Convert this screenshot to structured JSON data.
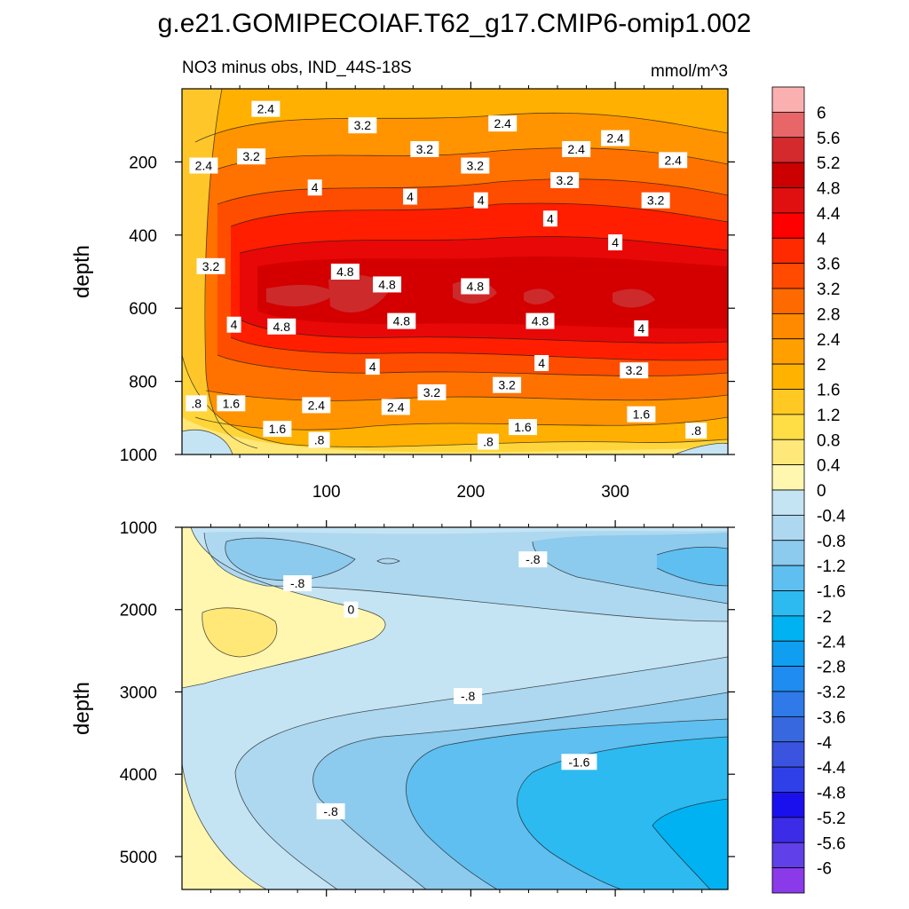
{
  "chart_data": {
    "type": "contour",
    "title": "g.e21.GOMIPECOIAF.T62_g17.CMIP6-omip1.002",
    "subtitle_left": "NO3 minus obs, IND_44S-18S",
    "subtitle_right": "mmol/m^3",
    "x_range": [
      0,
      378
    ],
    "x_ticks": [
      100,
      200,
      300
    ],
    "x_tick_labels": [
      "100",
      "200",
      "300"
    ],
    "panels": [
      {
        "name": "upper",
        "ylabel": "depth",
        "y_range": [
          1000,
          0
        ],
        "y_ticks": [
          200,
          400,
          600,
          800,
          1000
        ],
        "y_tick_labels": [
          "200",
          "400",
          "600",
          "800",
          "1000"
        ],
        "line_labels": [
          {
            "text": "2.4",
            "x": 58,
            "y": 55
          },
          {
            "text": "3.2",
            "x": 125,
            "y": 100
          },
          {
            "text": "2.4",
            "x": 222,
            "y": 95
          },
          {
            "text": "2.4",
            "x": 300,
            "y": 135
          },
          {
            "text": "2.4",
            "x": 273,
            "y": 165
          },
          {
            "text": "3.2",
            "x": 168,
            "y": 165
          },
          {
            "text": "3.2",
            "x": 48,
            "y": 185
          },
          {
            "text": "2.4",
            "x": 15,
            "y": 210
          },
          {
            "text": "3.2",
            "x": 203,
            "y": 210
          },
          {
            "text": "2.4",
            "x": 340,
            "y": 195
          },
          {
            "text": "3.2",
            "x": 265,
            "y": 250
          },
          {
            "text": "4",
            "x": 92,
            "y": 270
          },
          {
            "text": "4",
            "x": 158,
            "y": 295
          },
          {
            "text": "4",
            "x": 207,
            "y": 305
          },
          {
            "text": "3.2",
            "x": 328,
            "y": 305
          },
          {
            "text": "4",
            "x": 255,
            "y": 355
          },
          {
            "text": "4",
            "x": 300,
            "y": 420
          },
          {
            "text": "3.2",
            "x": 20,
            "y": 485
          },
          {
            "text": "4.8",
            "x": 113,
            "y": 500
          },
          {
            "text": "4.8",
            "x": 142,
            "y": 535
          },
          {
            "text": "4.8",
            "x": 203,
            "y": 540
          },
          {
            "text": "4.8",
            "x": 152,
            "y": 635
          },
          {
            "text": "4.8",
            "x": 248,
            "y": 635
          },
          {
            "text": "4",
            "x": 36,
            "y": 645
          },
          {
            "text": "4.8",
            "x": 69,
            "y": 650
          },
          {
            "text": "4",
            "x": 318,
            "y": 655
          },
          {
            "text": "4",
            "x": 132,
            "y": 760
          },
          {
            "text": "4",
            "x": 249,
            "y": 750
          },
          {
            "text": "3.2",
            "x": 313,
            "y": 770
          },
          {
            "text": "3.2",
            "x": 225,
            "y": 810
          },
          {
            "text": "3.2",
            "x": 173,
            "y": 830
          },
          {
            "text": ".8",
            "x": 10,
            "y": 860
          },
          {
            "text": "1.6",
            "x": 34,
            "y": 860
          },
          {
            "text": "2.4",
            "x": 93,
            "y": 865
          },
          {
            "text": "2.4",
            "x": 148,
            "y": 870
          },
          {
            "text": "1.6",
            "x": 318,
            "y": 890
          },
          {
            "text": "1.6",
            "x": 66,
            "y": 930
          },
          {
            "text": "1.6",
            "x": 236,
            "y": 925
          },
          {
            "text": ".8",
            "x": 356,
            "y": 935
          },
          {
            "text": ".8",
            "x": 95,
            "y": 960
          },
          {
            "text": ".8",
            "x": 212,
            "y": 965
          }
        ]
      },
      {
        "name": "lower",
        "ylabel": "depth",
        "y_range": [
          5400,
          1000
        ],
        "y_ticks": [
          1000,
          2000,
          3000,
          4000,
          5000
        ],
        "y_tick_labels": [
          "1000",
          "2000",
          "3000",
          "4000",
          "5000"
        ],
        "line_labels": [
          {
            "text": "-.8",
            "x": 80,
            "y": 1680
          },
          {
            "text": "-.8",
            "x": 243,
            "y": 1390
          },
          {
            "text": "0",
            "x": 117,
            "y": 2000
          },
          {
            "text": "-.8",
            "x": 198,
            "y": 3050
          },
          {
            "text": "-1.6",
            "x": 275,
            "y": 3850
          },
          {
            "text": "-.8",
            "x": 103,
            "y": 4450
          }
        ]
      }
    ],
    "colorbar": {
      "levels": [
        "6",
        "5.6",
        "5.2",
        "4.8",
        "4.4",
        "4",
        "3.6",
        "3.2",
        "2.8",
        "2.4",
        "2",
        "1.6",
        "1.2",
        "0.8",
        "0.4",
        "0",
        "-0.4",
        "-0.8",
        "-1.2",
        "-1.6",
        "-2",
        "-2.4",
        "-2.8",
        "-3.2",
        "-3.6",
        "-4",
        "-4.4",
        "-4.8",
        "-5.2",
        "-5.6",
        "-6"
      ],
      "colors": [
        "#fbb0b0",
        "#e86668",
        "#d42a2e",
        "#cc0000",
        "#e01010",
        "#ff0000",
        "#ff2a00",
        "#ff4a00",
        "#ff6a00",
        "#ff8a00",
        "#ffa000",
        "#ffb300",
        "#ffc822",
        "#ffdd44",
        "#ffe87a",
        "#fff6b0",
        "#c4e4f4",
        "#aed8f0",
        "#8ccaee",
        "#5fbff0",
        "#2dbaf0",
        "#00b2f2",
        "#109ef0",
        "#1e8cf0",
        "#2f7ae8",
        "#3868e0",
        "#3a54e0",
        "#3040e8",
        "#1a10ee",
        "#3c2ce8",
        "#6040e8",
        "#8a3ae8"
      ]
    }
  }
}
